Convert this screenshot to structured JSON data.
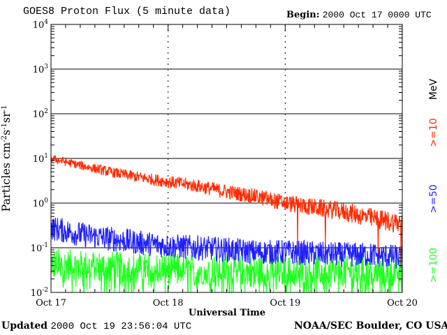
{
  "header": {
    "title": "GOES8 Proton Flux (5 minute data)",
    "begin_label": "Begin:",
    "begin_value": "2000 Oct 17 0000 UTC"
  },
  "footer": {
    "updated_label": "Updated",
    "updated_value": "2000 Oct 19 23:56:04 UTC",
    "credit": "NOAA/SEC Boulder, CO USA"
  },
  "colors": {
    "red": "#ff2a00",
    "blue": "#1f1fff",
    "green": "#1fff1f",
    "grid": "#000000"
  },
  "chart_data": {
    "type": "line",
    "xlabel": "Universal Time",
    "ylabel": "Particles cm-2s-1sr-1",
    "xticks": [
      "Oct 17",
      "Oct 18",
      "Oct 19",
      "Oct 20"
    ],
    "xlim": [
      0,
      3
    ],
    "x_unit": "days since 2000 Oct 17 0000 UTC",
    "yscale": "log",
    "ylim": [
      0.01,
      10000
    ],
    "yticks": [
      {
        "base": "10",
        "exp": "4"
      },
      {
        "base": "10",
        "exp": "3"
      },
      {
        "base": "10",
        "exp": "2"
      },
      {
        "base": "10",
        "exp": "1"
      },
      {
        "base": "10",
        "exp": "0"
      },
      {
        "base": "10",
        "exp": "-1"
      },
      {
        "base": "10",
        "exp": "-2"
      }
    ],
    "unit_label": "MeV",
    "series": [
      {
        "name": ">=10",
        "color": "#ff2a00",
        "x": [
          0,
          0.25,
          0.5,
          0.75,
          1.0,
          1.25,
          1.5,
          1.75,
          2.0,
          2.25,
          2.5,
          2.75,
          3.0
        ],
        "y": [
          10,
          7,
          5,
          3.8,
          3.0,
          2.4,
          1.8,
          1.4,
          1.0,
          0.8,
          0.65,
          0.45,
          0.35
        ]
      },
      {
        "name": ">=50",
        "color": "#1f1fff",
        "x": [
          0,
          0.25,
          0.5,
          0.75,
          1.0,
          1.25,
          1.5,
          1.75,
          2.0,
          2.25,
          2.5,
          2.75,
          3.0
        ],
        "y": [
          0.28,
          0.2,
          0.16,
          0.13,
          0.11,
          0.1,
          0.09,
          0.08,
          0.08,
          0.075,
          0.07,
          0.07,
          0.06
        ]
      },
      {
        "name": ">=100",
        "color": "#1fff1f",
        "x": [
          0,
          0.25,
          0.5,
          0.75,
          1.0,
          1.25,
          1.5,
          1.75,
          2.0,
          2.25,
          2.5,
          2.75,
          3.0
        ],
        "y": [
          0.045,
          0.04,
          0.038,
          0.035,
          0.035,
          0.033,
          0.032,
          0.03,
          0.03,
          0.03,
          0.03,
          0.03,
          0.03
        ]
      }
    ],
    "grid": true
  }
}
